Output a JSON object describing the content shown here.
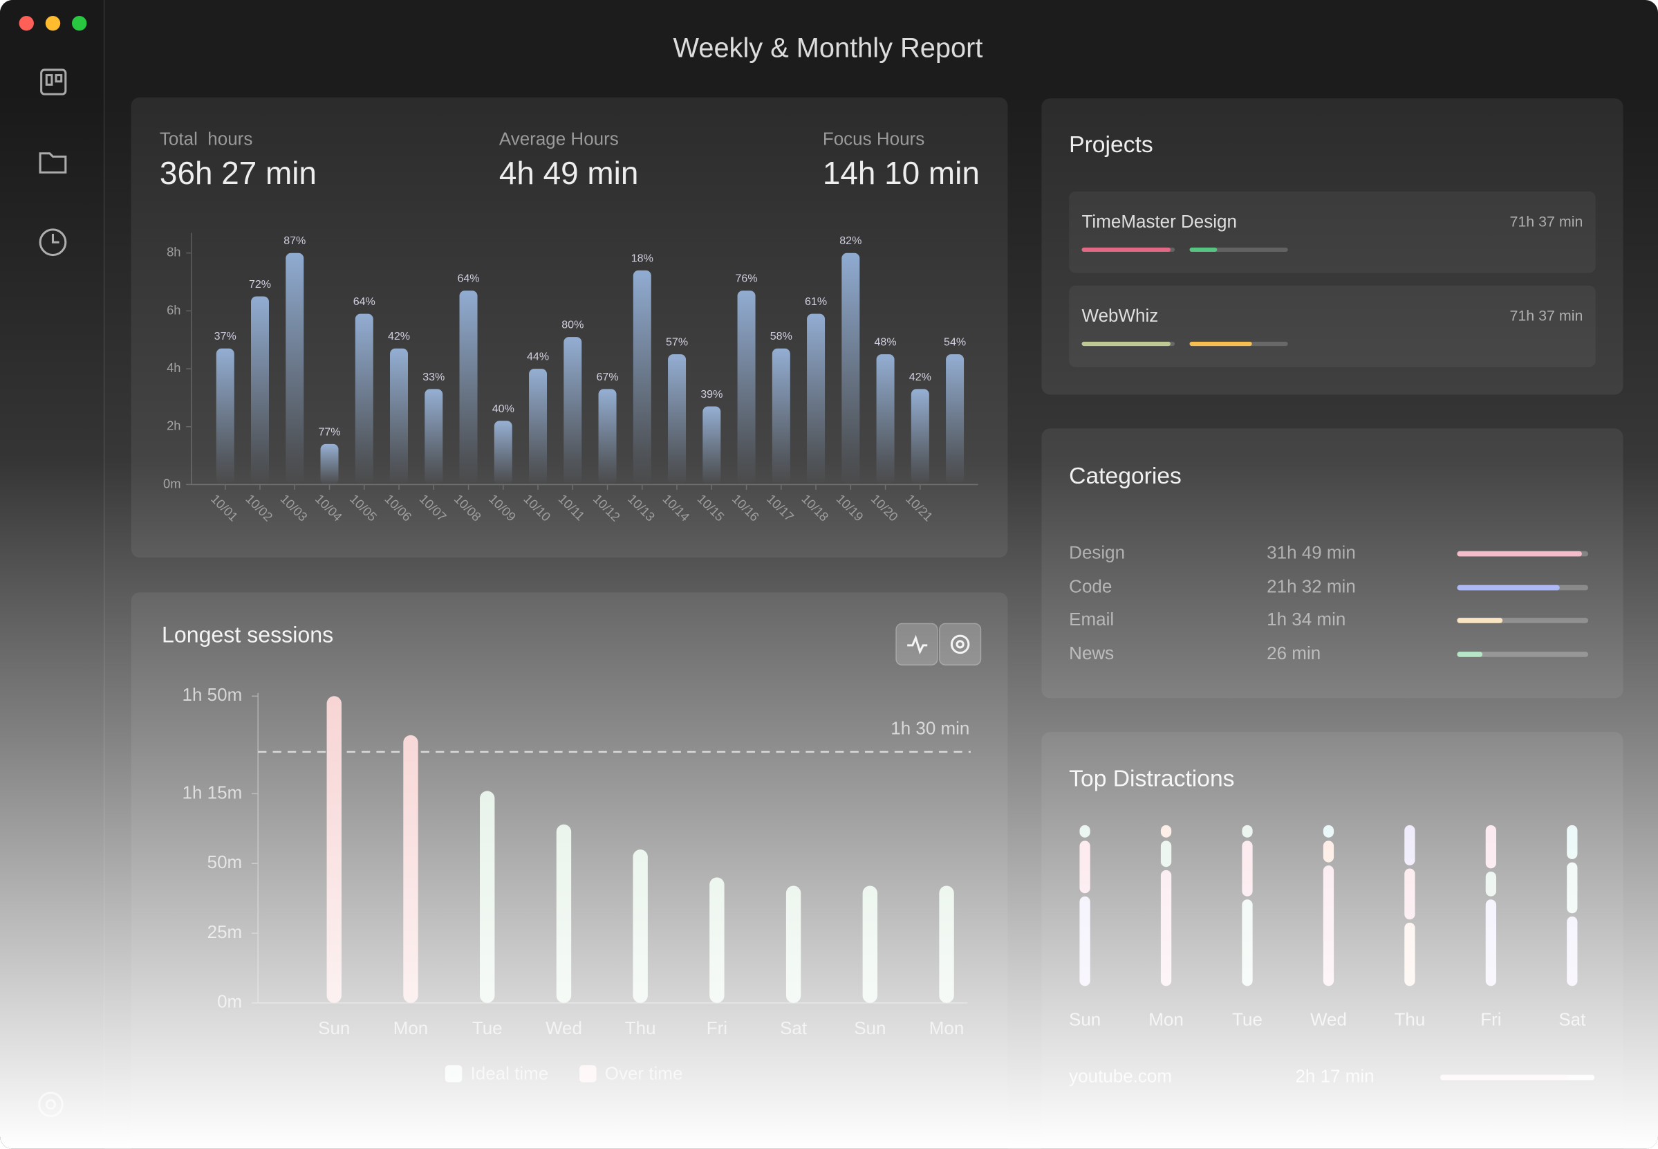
{
  "window": {
    "title": "Weekly & Monthly Report"
  },
  "stats": [
    {
      "label": "Total  hours",
      "value": "36h 27 min"
    },
    {
      "label": "Average Hours",
      "value": "4h 49 min"
    },
    {
      "label": "Focus Hours",
      "value": "14h 10 min"
    }
  ],
  "hours_chart": {
    "type": "bar",
    "categories": [
      "10/01",
      "10/02",
      "10/03",
      "10/04",
      "10/05",
      "10/06",
      "10/07",
      "10/08",
      "10/09",
      "10/10",
      "10/11",
      "10/12",
      "10/13",
      "10/14",
      "10/15",
      "10/16",
      "10/17",
      "10/18",
      "10/19",
      "10/20",
      "10/21",
      null
    ],
    "values": [
      4.7,
      6.5,
      8.0,
      1.4,
      5.9,
      4.7,
      3.3,
      6.7,
      2.2,
      4.0,
      5.1,
      3.3,
      7.4,
      4.5,
      2.7,
      6.7,
      4.7,
      5.9,
      8.0,
      4.5,
      3.3,
      4.5
    ],
    "annotations": [
      "37%",
      "72%",
      "87%",
      "77%",
      "64%",
      "42%",
      "33%",
      "64%",
      "40%",
      "44%",
      "80%",
      "67%",
      "18%",
      "57%",
      "39%",
      "76%",
      "58%",
      "61%",
      "82%",
      "48%",
      "42%",
      "54%"
    ],
    "color": "#8aa7cf",
    "ylim": [
      0,
      8.7
    ],
    "yticks": [
      {
        "value": 0,
        "label": "0m"
      },
      {
        "value": 2,
        "label": "2h"
      },
      {
        "value": 4,
        "label": "4h"
      },
      {
        "value": 6,
        "label": "6h"
      },
      {
        "value": 8,
        "label": "8h"
      }
    ]
  },
  "projects": {
    "title": "Projects",
    "items": [
      {
        "name": "TimeMaster Design",
        "time": "71h 37 min",
        "bars": [
          {
            "value": 95,
            "color": "#e0607e"
          },
          {
            "value": 28,
            "color": "#4cc27a"
          }
        ]
      },
      {
        "name": "WebWhiz",
        "time": "71h 37 min",
        "bars": [
          {
            "value": 95,
            "color": "#b8c48a"
          },
          {
            "value": 63,
            "color": "#f5b940"
          }
        ]
      }
    ]
  },
  "categories": {
    "title": "Categories",
    "items": [
      {
        "name": "Design",
        "time": "31h 49 min",
        "value": 95,
        "color": "#f4a7b9"
      },
      {
        "name": "Code",
        "time": "21h 32 min",
        "value": 78,
        "color": "#8e9ef0"
      },
      {
        "name": "Email",
        "time": "1h 34 min",
        "value": 35,
        "color": "#f7d9a8"
      },
      {
        "name": "News",
        "time": "26 min",
        "value": 19,
        "color": "#8fd8a8"
      }
    ]
  },
  "sessions_chart": {
    "type": "bar",
    "title": "Longest sessions",
    "categories": [
      "Sun",
      "Mon",
      "Tue",
      "Wed",
      "Thu",
      "Fri",
      "Sat",
      "Sun",
      "Mon"
    ],
    "series": [
      {
        "name": "Ideal time",
        "color": "#cfe6d4",
        "values": [
          null,
          null,
          76,
          64,
          55,
          45,
          42,
          42,
          42
        ]
      },
      {
        "name": "Over time",
        "color": "#f2b8b8",
        "values": [
          110,
          96,
          null,
          null,
          null,
          null,
          null,
          null,
          null
        ]
      }
    ],
    "ylim": [
      0,
      110
    ],
    "yticks": [
      {
        "value": 0,
        "label": "0m"
      },
      {
        "value": 25,
        "label": "25m"
      },
      {
        "value": 50,
        "label": "50m"
      },
      {
        "value": 75,
        "label": "1h 15m"
      },
      {
        "value": 110,
        "label": "1h 50m"
      }
    ],
    "reference_line": {
      "value": 90,
      "label": "1h 30 min"
    }
  },
  "distractions": {
    "title": "Top Distractions",
    "days": [
      "Sun",
      "Mon",
      "Tue",
      "Wed",
      "Thu",
      "Fri",
      "Sat"
    ],
    "columns": [
      [
        {
          "value": 8,
          "color": "#cfe8df"
        },
        {
          "value": 34,
          "color": "#f7cdd8"
        },
        {
          "value": 58,
          "color": "#e3dcf7"
        }
      ],
      [
        {
          "value": 8,
          "color": "#fad8c6"
        },
        {
          "value": 17,
          "color": "#d3e8dc"
        },
        {
          "value": 75,
          "color": "#f5d2de"
        }
      ],
      [
        {
          "value": 8,
          "color": "#d3e8dc"
        },
        {
          "value": 36,
          "color": "#f7cdd8"
        },
        {
          "value": 56,
          "color": "#dcefe6"
        }
      ],
      [
        {
          "value": 8,
          "color": "#d0eef0"
        },
        {
          "value": 14,
          "color": "#fad8c6"
        },
        {
          "value": 78,
          "color": "#f5d2de"
        }
      ],
      [
        {
          "value": 26,
          "color": "#dcd3f5"
        },
        {
          "value": 33,
          "color": "#f7cdd8"
        },
        {
          "value": 41,
          "color": "#fbdfd2"
        }
      ],
      [
        {
          "value": 28,
          "color": "#f5cfdc"
        },
        {
          "value": 16,
          "color": "#d3e8dc"
        },
        {
          "value": 56,
          "color": "#e3dcf7"
        }
      ],
      [
        {
          "value": 22,
          "color": "#d3f0ee"
        },
        {
          "value": 33,
          "color": "#dcefe6"
        },
        {
          "value": 45,
          "color": "#e3dcf7"
        }
      ]
    ],
    "sites": [
      {
        "name": "youtube.com",
        "time": "2h 17 min",
        "value": 83,
        "color": "#f7cdd8"
      }
    ]
  }
}
